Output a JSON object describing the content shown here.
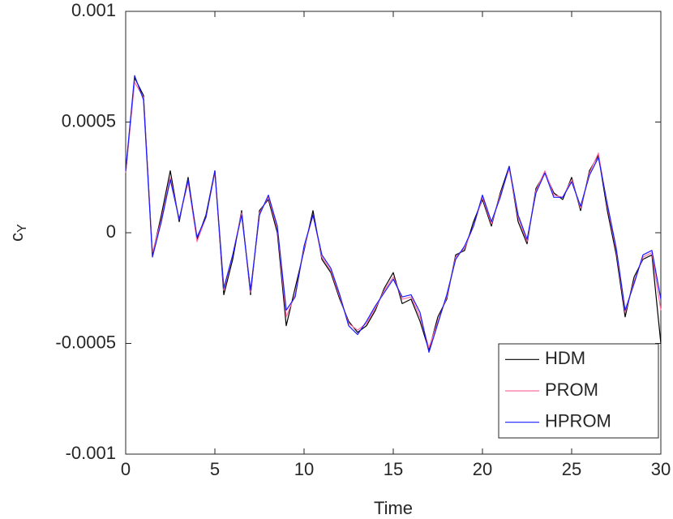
{
  "chart_data": {
    "type": "line",
    "xlabel": "Time",
    "ylabel": "c",
    "ylabel_sub": "Y",
    "x": [
      0,
      0.5,
      1,
      1.5,
      2,
      2.5,
      3,
      3.5,
      4,
      4.5,
      5,
      5.5,
      6,
      6.5,
      7,
      7.5,
      8,
      8.5,
      9,
      9.5,
      10,
      10.5,
      11,
      11.5,
      12,
      12.5,
      13,
      13.5,
      14,
      14.5,
      15,
      15.5,
      16,
      16.5,
      17,
      17.5,
      18,
      18.5,
      19,
      19.5,
      20,
      20.5,
      21,
      21.5,
      22,
      22.5,
      23,
      23.5,
      24,
      24.5,
      25,
      25.5,
      26,
      26.5,
      27,
      27.5,
      28,
      28.5,
      29,
      29.5,
      30
    ],
    "series": [
      {
        "name": "HDM",
        "color": "#000000",
        "values": [
          0.00027,
          0.0007,
          0.00062,
          -0.0001,
          8e-05,
          0.00028,
          5e-05,
          0.00025,
          -3e-05,
          8e-05,
          0.00028,
          -0.00028,
          -0.00012,
          0.0001,
          -0.00028,
          0.0001,
          0.00015,
          0,
          -0.00042,
          -0.00025,
          -8e-05,
          0.0001,
          -0.00012,
          -0.00018,
          -0.0003,
          -0.0004,
          -0.00045,
          -0.00042,
          -0.00035,
          -0.00025,
          -0.00018,
          -0.00032,
          -0.0003,
          -0.0004,
          -0.00053,
          -0.00038,
          -0.0003,
          -0.0001,
          -8e-05,
          5e-05,
          0.00015,
          3e-05,
          0.00018,
          0.0003,
          5e-05,
          -5e-05,
          0.0002,
          0.00027,
          0.00018,
          0.00015,
          0.00025,
          0.0001,
          0.00028,
          0.00035,
          0.0001,
          -0.0001,
          -0.00038,
          -0.0002,
          -0.00012,
          -0.0001,
          -0.0005
        ]
      },
      {
        "name": "PROM",
        "color": "#ff6f9f",
        "values": [
          0.00027,
          0.00068,
          0.00061,
          -9e-05,
          6e-05,
          0.00025,
          6e-05,
          0.00023,
          -4e-05,
          7e-05,
          0.00027,
          -0.00026,
          -0.0001,
          9e-05,
          -0.00027,
          9e-05,
          0.00016,
          2e-05,
          -0.00038,
          -0.00028,
          -7e-05,
          8e-05,
          -0.00011,
          -0.00017,
          -0.00029,
          -0.00041,
          -0.00044,
          -0.00041,
          -0.00034,
          -0.00026,
          -0.0002,
          -0.0003,
          -0.00029,
          -0.00038,
          -0.00052,
          -0.0004,
          -0.00029,
          -0.00011,
          -7e-05,
          3e-05,
          0.00016,
          4e-05,
          0.00017,
          0.00029,
          7e-05,
          -4e-05,
          0.00019,
          0.00028,
          0.00017,
          0.00016,
          0.00024,
          0.00011,
          0.00027,
          0.00036,
          0.00012,
          -8e-05,
          -0.00036,
          -0.00022,
          -0.00011,
          -9e-05,
          -0.00035
        ]
      },
      {
        "name": "HPROM",
        "color": "#1a1aff",
        "values": [
          0.00028,
          0.00071,
          0.0006,
          -0.00011,
          5e-05,
          0.00024,
          6e-05,
          0.00024,
          -2e-05,
          7e-05,
          0.00028,
          -0.00025,
          -0.0001,
          8e-05,
          -0.00026,
          8e-05,
          0.00017,
          3e-05,
          -0.00035,
          -0.00029,
          -6e-05,
          8e-05,
          -0.0001,
          -0.00016,
          -0.00028,
          -0.00042,
          -0.00046,
          -0.0004,
          -0.00033,
          -0.00027,
          -0.00021,
          -0.00029,
          -0.00028,
          -0.00036,
          -0.00054,
          -0.00041,
          -0.00028,
          -0.00012,
          -6e-05,
          3e-05,
          0.00017,
          5e-05,
          0.00016,
          0.0003,
          8e-05,
          -3e-05,
          0.00018,
          0.00027,
          0.00016,
          0.00016,
          0.00023,
          0.00012,
          0.00026,
          0.00034,
          0.00013,
          -7e-05,
          -0.00035,
          -0.00023,
          -0.0001,
          -8e-05,
          -0.0003
        ]
      }
    ],
    "xlim": [
      0,
      30
    ],
    "xticks": [
      0,
      5,
      10,
      15,
      20,
      25,
      30
    ],
    "ylim": [
      -0.001,
      0.001
    ],
    "yticks": [
      -0.001,
      -0.0005,
      0,
      0.0005,
      0.001
    ],
    "grid": false,
    "legend": "lower right"
  }
}
